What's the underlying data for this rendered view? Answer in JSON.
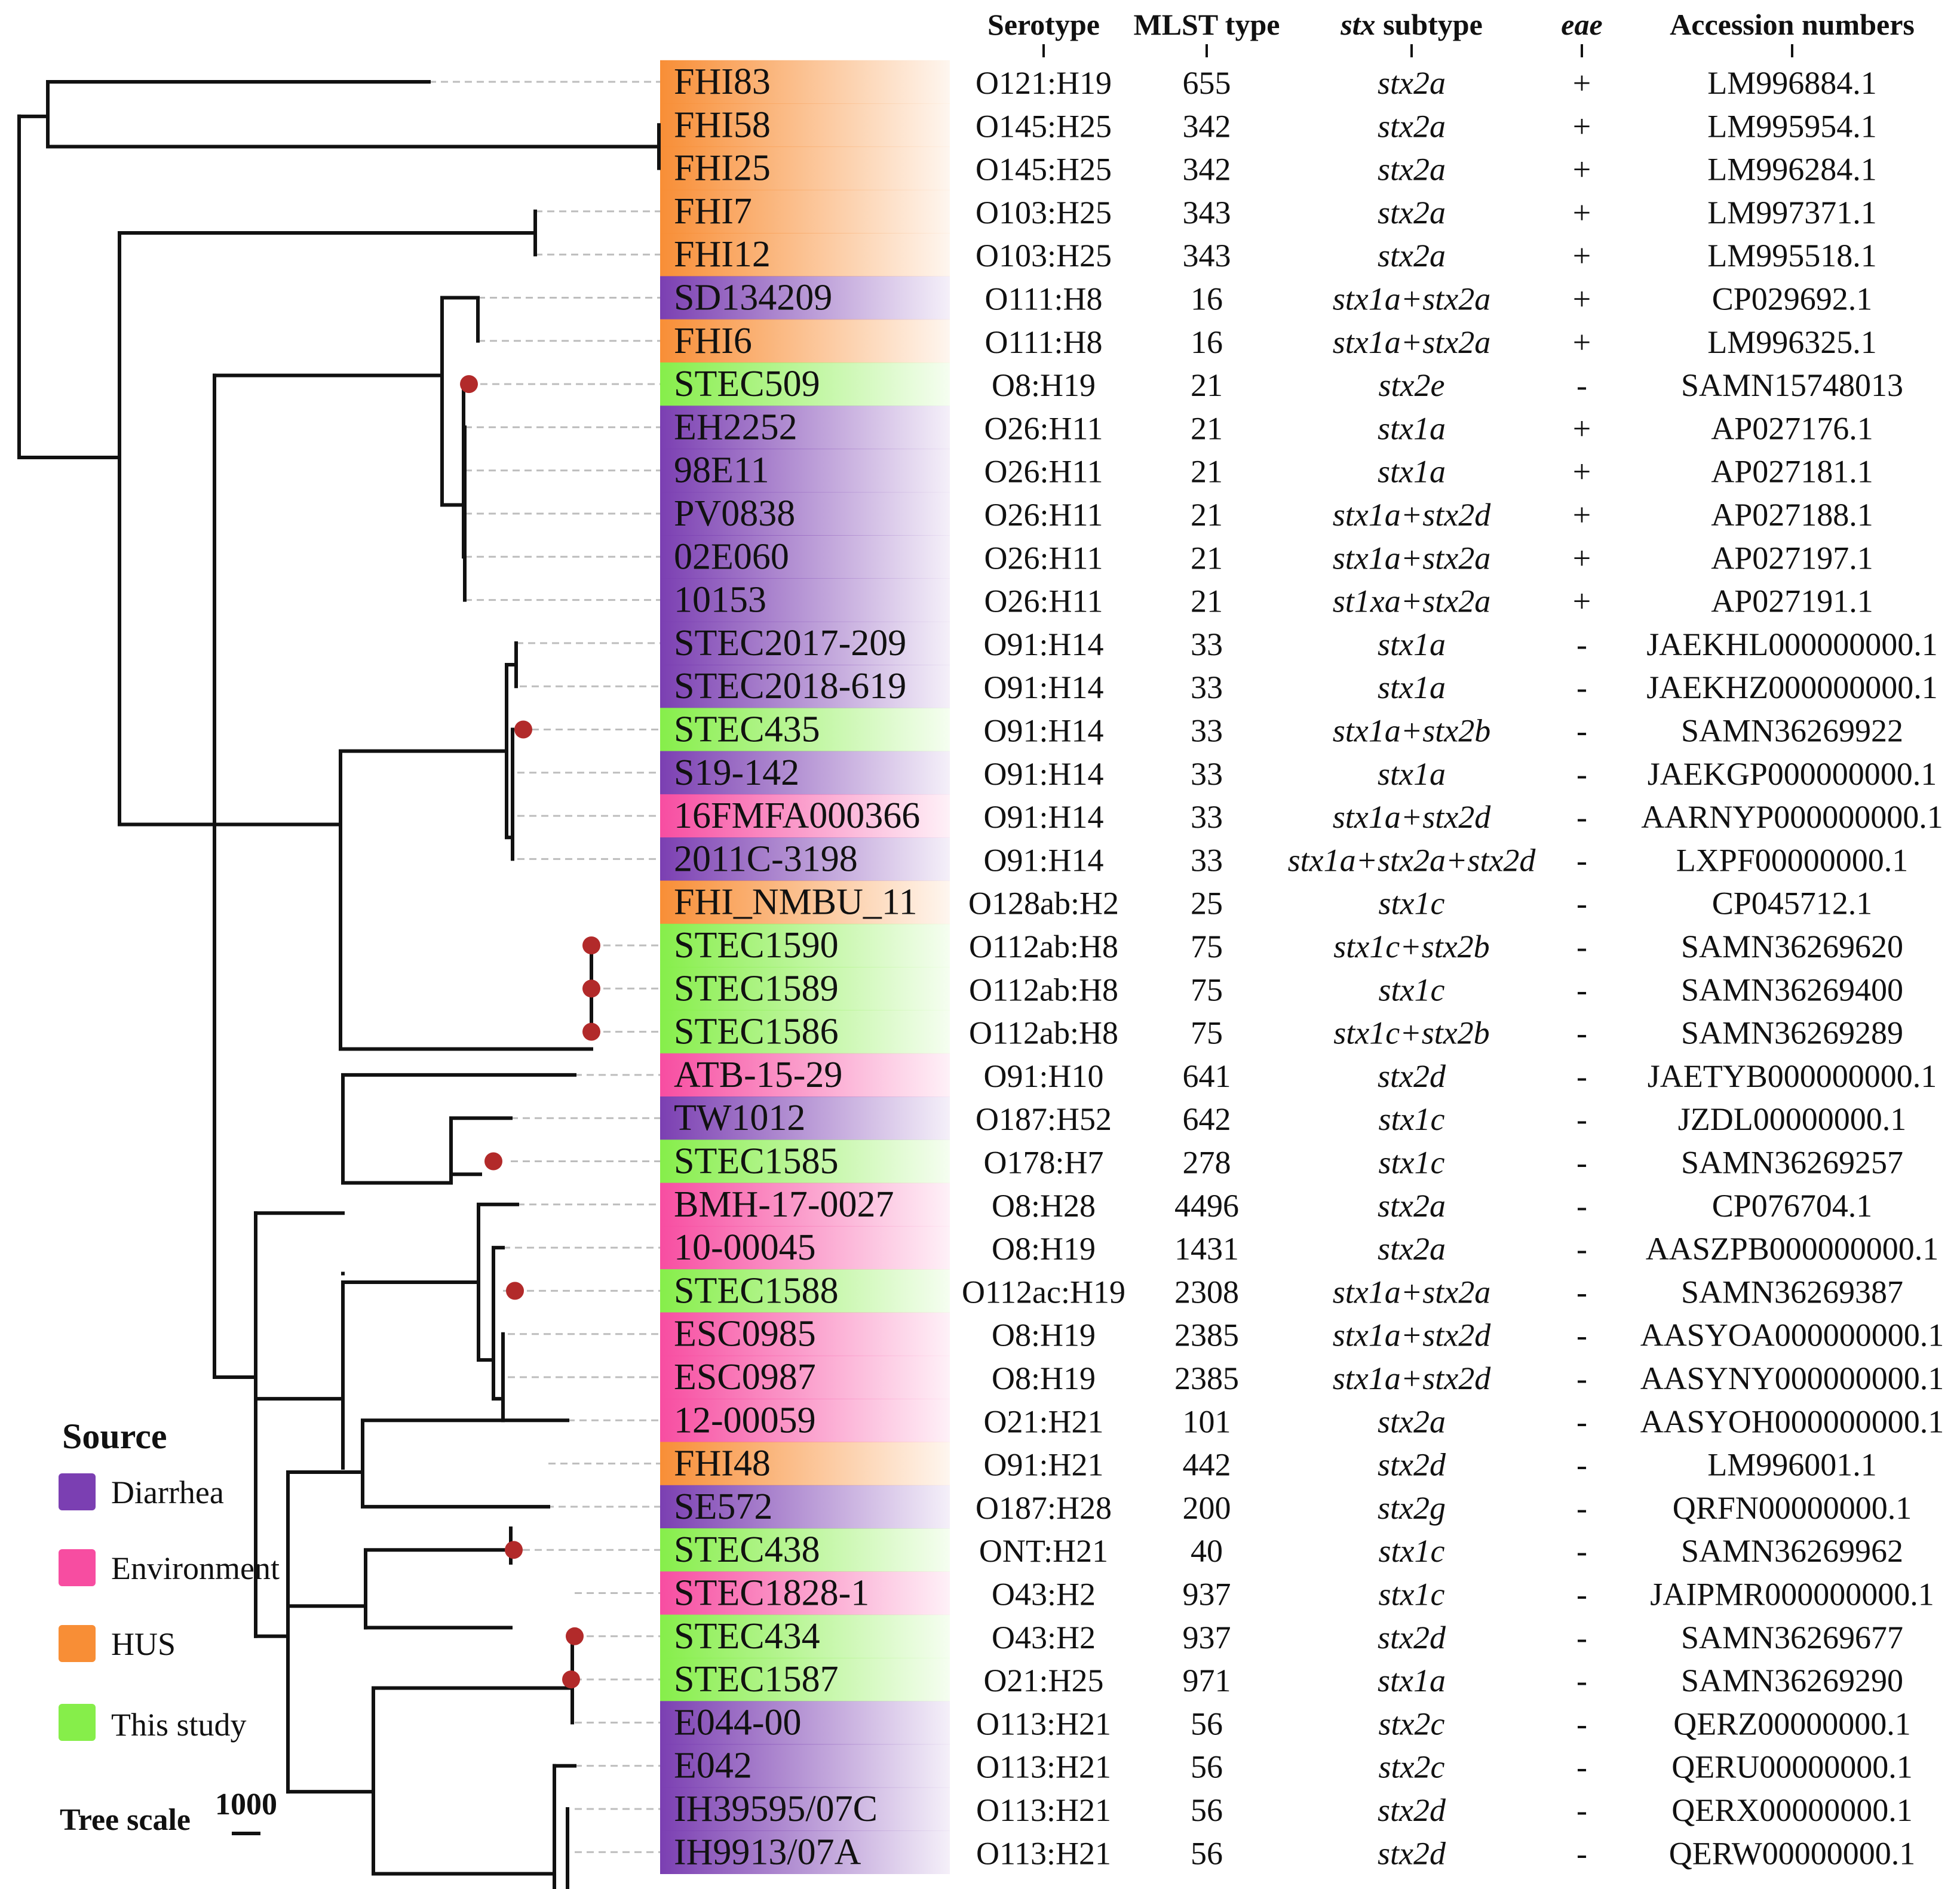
{
  "headers": {
    "serotype": "Serotype",
    "mlst": "MLST type",
    "stx_italic": "stx",
    "stx_rest": " subtype",
    "eae": "eae",
    "accession": "Accession numbers"
  },
  "legend": {
    "title": "Source",
    "items": [
      {
        "label": "Diarrhea",
        "color": "#7b3fb2"
      },
      {
        "label": "Environment",
        "color": "#f74da1"
      },
      {
        "label": "HUS",
        "color": "#f88e36"
      },
      {
        "label": "This study",
        "color": "#86ee4a"
      }
    ]
  },
  "tree_scale": {
    "label": "Tree scale",
    "value": "1000"
  },
  "source_colors": {
    "D": "#7b3fb2",
    "E": "#f74da1",
    "H": "#f88e36",
    "S": "#86ee4a"
  },
  "strains": [
    {
      "name": "FHI83",
      "source": "H",
      "serotype": "O121:H19",
      "mlst": "655",
      "stx": "stx2a",
      "eae": "+",
      "acc": "LM996884.1",
      "marker": false
    },
    {
      "name": "FHI58",
      "source": "H",
      "serotype": "O145:H25",
      "mlst": "342",
      "stx": "stx2a",
      "eae": "+",
      "acc": "LM995954.1",
      "marker": false
    },
    {
      "name": "FHI25",
      "source": "H",
      "serotype": "O145:H25",
      "mlst": "342",
      "stx": "stx2a",
      "eae": "+",
      "acc": "LM996284.1",
      "marker": false
    },
    {
      "name": "FHI7",
      "source": "H",
      "serotype": "O103:H25",
      "mlst": "343",
      "stx": "stx2a",
      "eae": "+",
      "acc": "LM997371.1",
      "marker": false
    },
    {
      "name": "FHI12",
      "source": "H",
      "serotype": "O103:H25",
      "mlst": "343",
      "stx": "stx2a",
      "eae": "+",
      "acc": "LM995518.1",
      "marker": false
    },
    {
      "name": "SD134209",
      "source": "D",
      "serotype": "O111:H8",
      "mlst": "16",
      "stx": "stx1a+stx2a",
      "eae": "+",
      "acc": "CP029692.1",
      "marker": false
    },
    {
      "name": "FHI6",
      "source": "H",
      "serotype": "O111:H8",
      "mlst": "16",
      "stx": "stx1a+stx2a",
      "eae": "+",
      "acc": "LM996325.1",
      "marker": false
    },
    {
      "name": "STEC509",
      "source": "S",
      "serotype": "O8:H19",
      "mlst": "21",
      "stx": "stx2e",
      "eae": "-",
      "acc": "SAMN15748013",
      "marker": true
    },
    {
      "name": "EH2252",
      "source": "D",
      "serotype": "O26:H11",
      "mlst": "21",
      "stx": "stx1a",
      "eae": "+",
      "acc": "AP027176.1",
      "marker": false
    },
    {
      "name": "98E11",
      "source": "D",
      "serotype": "O26:H11",
      "mlst": "21",
      "stx": "stx1a",
      "eae": "+",
      "acc": "AP027181.1",
      "marker": false
    },
    {
      "name": "PV0838",
      "source": "D",
      "serotype": "O26:H11",
      "mlst": "21",
      "stx": "stx1a+stx2d",
      "eae": "+",
      "acc": "AP027188.1",
      "marker": false
    },
    {
      "name": "02E060",
      "source": "D",
      "serotype": "O26:H11",
      "mlst": "21",
      "stx": "stx1a+stx2a",
      "eae": "+",
      "acc": "AP027197.1",
      "marker": false
    },
    {
      "name": "10153",
      "source": "D",
      "serotype": "O26:H11",
      "mlst": "21",
      "stx": "st1xa+stx2a",
      "eae": "+",
      "acc": "AP027191.1",
      "marker": false
    },
    {
      "name": "STEC2017-209",
      "source": "D",
      "serotype": "O91:H14",
      "mlst": "33",
      "stx": "stx1a",
      "eae": "-",
      "acc": "JAEKHL000000000.1",
      "marker": false
    },
    {
      "name": "STEC2018-619",
      "source": "D",
      "serotype": "O91:H14",
      "mlst": "33",
      "stx": "stx1a",
      "eae": "-",
      "acc": "JAEKHZ000000000.1",
      "marker": false
    },
    {
      "name": "STEC435",
      "source": "S",
      "serotype": "O91:H14",
      "mlst": "33",
      "stx": "stx1a+stx2b",
      "eae": "-",
      "acc": "SAMN36269922",
      "marker": true
    },
    {
      "name": "S19-142",
      "source": "D",
      "serotype": "O91:H14",
      "mlst": "33",
      "stx": "stx1a",
      "eae": "-",
      "acc": "JAEKGP000000000.1",
      "marker": false
    },
    {
      "name": "16FMFA000366",
      "source": "E",
      "serotype": "O91:H14",
      "mlst": "33",
      "stx": "stx1a+stx2d",
      "eae": "-",
      "acc": "AARNYP000000000.1",
      "marker": false
    },
    {
      "name": "2011C-3198",
      "source": "D",
      "serotype": "O91:H14",
      "mlst": "33",
      "stx": "stx1a+stx2a+stx2d",
      "eae": "-",
      "acc": "LXPF00000000.1",
      "marker": false
    },
    {
      "name": "FHI_NMBU_11",
      "source": "H",
      "serotype": "O128ab:H2",
      "mlst": "25",
      "stx": "stx1c",
      "eae": "-",
      "acc": "CP045712.1",
      "marker": false
    },
    {
      "name": "STEC1590",
      "source": "S",
      "serotype": "O112ab:H8",
      "mlst": "75",
      "stx": "stx1c+stx2b",
      "eae": "-",
      "acc": "SAMN36269620",
      "marker": true
    },
    {
      "name": "STEC1589",
      "source": "S",
      "serotype": "O112ab:H8",
      "mlst": "75",
      "stx": "stx1c",
      "eae": "-",
      "acc": "SAMN36269400",
      "marker": true
    },
    {
      "name": "STEC1586",
      "source": "S",
      "serotype": "O112ab:H8",
      "mlst": "75",
      "stx": "stx1c+stx2b",
      "eae": "-",
      "acc": "SAMN36269289",
      "marker": true
    },
    {
      "name": "ATB-15-29",
      "source": "E",
      "serotype": "O91:H10",
      "mlst": "641",
      "stx": "stx2d",
      "eae": "-",
      "acc": "JAETYB000000000.1",
      "marker": false
    },
    {
      "name": "TW1012",
      "source": "D",
      "serotype": "O187:H52",
      "mlst": "642",
      "stx": "stx1c",
      "eae": "-",
      "acc": "JZDL00000000.1",
      "marker": false
    },
    {
      "name": "STEC1585",
      "source": "S",
      "serotype": "O178:H7",
      "mlst": "278",
      "stx": "stx1c",
      "eae": "-",
      "acc": "SAMN36269257",
      "marker": true
    },
    {
      "name": "BMH-17-0027",
      "source": "E",
      "serotype": "O8:H28",
      "mlst": "4496",
      "stx": "stx2a",
      "eae": "-",
      "acc": "CP076704.1",
      "marker": false
    },
    {
      "name": "10-00045",
      "source": "E",
      "serotype": "O8:H19",
      "mlst": "1431",
      "stx": "stx2a",
      "eae": "-",
      "acc": "AASZPB000000000.1",
      "marker": false
    },
    {
      "name": "STEC1588",
      "source": "S",
      "serotype": "O112ac:H19",
      "mlst": "2308",
      "stx": "stx1a+stx2a",
      "eae": "-",
      "acc": "SAMN36269387",
      "marker": true
    },
    {
      "name": "ESC0985",
      "source": "E",
      "serotype": "O8:H19",
      "mlst": "2385",
      "stx": "stx1a+stx2d",
      "eae": "-",
      "acc": "AASYOA000000000.1",
      "marker": false
    },
    {
      "name": "ESC0987",
      "source": "E",
      "serotype": "O8:H19",
      "mlst": "2385",
      "stx": "stx1a+stx2d",
      "eae": "-",
      "acc": "AASYNY000000000.1",
      "marker": false
    },
    {
      "name": "12-00059",
      "source": "E",
      "serotype": "O21:H21",
      "mlst": "101",
      "stx": "stx2a",
      "eae": "-",
      "acc": "AASYOH000000000.1",
      "marker": false
    },
    {
      "name": "FHI48",
      "source": "H",
      "serotype": "O91:H21",
      "mlst": "442",
      "stx": "stx2d",
      "eae": "-",
      "acc": "LM996001.1",
      "marker": false
    },
    {
      "name": "SE572",
      "source": "D",
      "serotype": "O187:H28",
      "mlst": "200",
      "stx": "stx2g",
      "eae": "-",
      "acc": "QRFN00000000.1",
      "marker": false
    },
    {
      "name": "STEC438",
      "source": "S",
      "serotype": "ONT:H21",
      "mlst": "40",
      "stx": "stx1c",
      "eae": "-",
      "acc": "SAMN36269962",
      "marker": true
    },
    {
      "name": "STEC1828-1",
      "source": "E",
      "serotype": "O43:H2",
      "mlst": "937",
      "stx": "stx1c",
      "eae": "-",
      "acc": "JAIPMR000000000.1",
      "marker": false
    },
    {
      "name": "STEC434",
      "source": "S",
      "serotype": "O43:H2",
      "mlst": "937",
      "stx": "stx2d",
      "eae": "-",
      "acc": "SAMN36269677",
      "marker": true
    },
    {
      "name": "STEC1587",
      "source": "S",
      "serotype": "O21:H25",
      "mlst": "971",
      "stx": "stx1a",
      "eae": "-",
      "acc": "SAMN36269290",
      "marker": true
    },
    {
      "name": "E044-00",
      "source": "D",
      "serotype": "O113:H21",
      "mlst": "56",
      "stx": "stx2c",
      "eae": "-",
      "acc": "QERZ00000000.1",
      "marker": false
    },
    {
      "name": "E042",
      "source": "D",
      "serotype": "O113:H21",
      "mlst": "56",
      "stx": "stx2c",
      "eae": "-",
      "acc": "QERU00000000.1",
      "marker": false
    },
    {
      "name": "IH39595/07C",
      "source": "D",
      "serotype": "O113:H21",
      "mlst": "56",
      "stx": "stx2d",
      "eae": "-",
      "acc": "QERX00000000.1",
      "marker": false
    },
    {
      "name": "IH9913/07A",
      "source": "D",
      "serotype": "O113:H21",
      "mlst": "56",
      "stx": "stx2d",
      "eae": "-",
      "acc": "QERW00000000.1",
      "marker": false
    }
  ]
}
